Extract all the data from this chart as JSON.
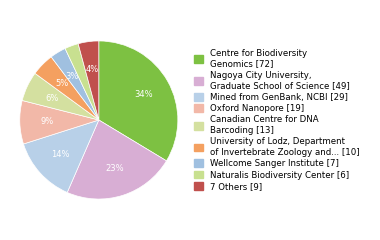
{
  "labels": [
    "Centre for Biodiversity\nGenomics [72]",
    "Nagoya City University,\nGraduate School of Science [49]",
    "Mined from GenBank, NCBI [29]",
    "Oxford Nanopore [19]",
    "Canadian Centre for DNA\nBarcoding [13]",
    "University of Lodz, Department\nof Invertebrate Zoology and... [10]",
    "Wellcome Sanger Institute [7]",
    "Naturalis Biodiversity Center [6]",
    "7 Others [9]"
  ],
  "values": [
    72,
    49,
    29,
    19,
    13,
    10,
    7,
    6,
    9
  ],
  "pie_colors": [
    "#7dc142",
    "#d8aed4",
    "#b8d0e8",
    "#f2b8a8",
    "#d4e0a0",
    "#f4a060",
    "#a0c0e0",
    "#c8e090",
    "#c0504d"
  ],
  "startangle": 90,
  "figsize": [
    3.8,
    2.4
  ],
  "dpi": 100,
  "legend_fontsize": 6.2
}
